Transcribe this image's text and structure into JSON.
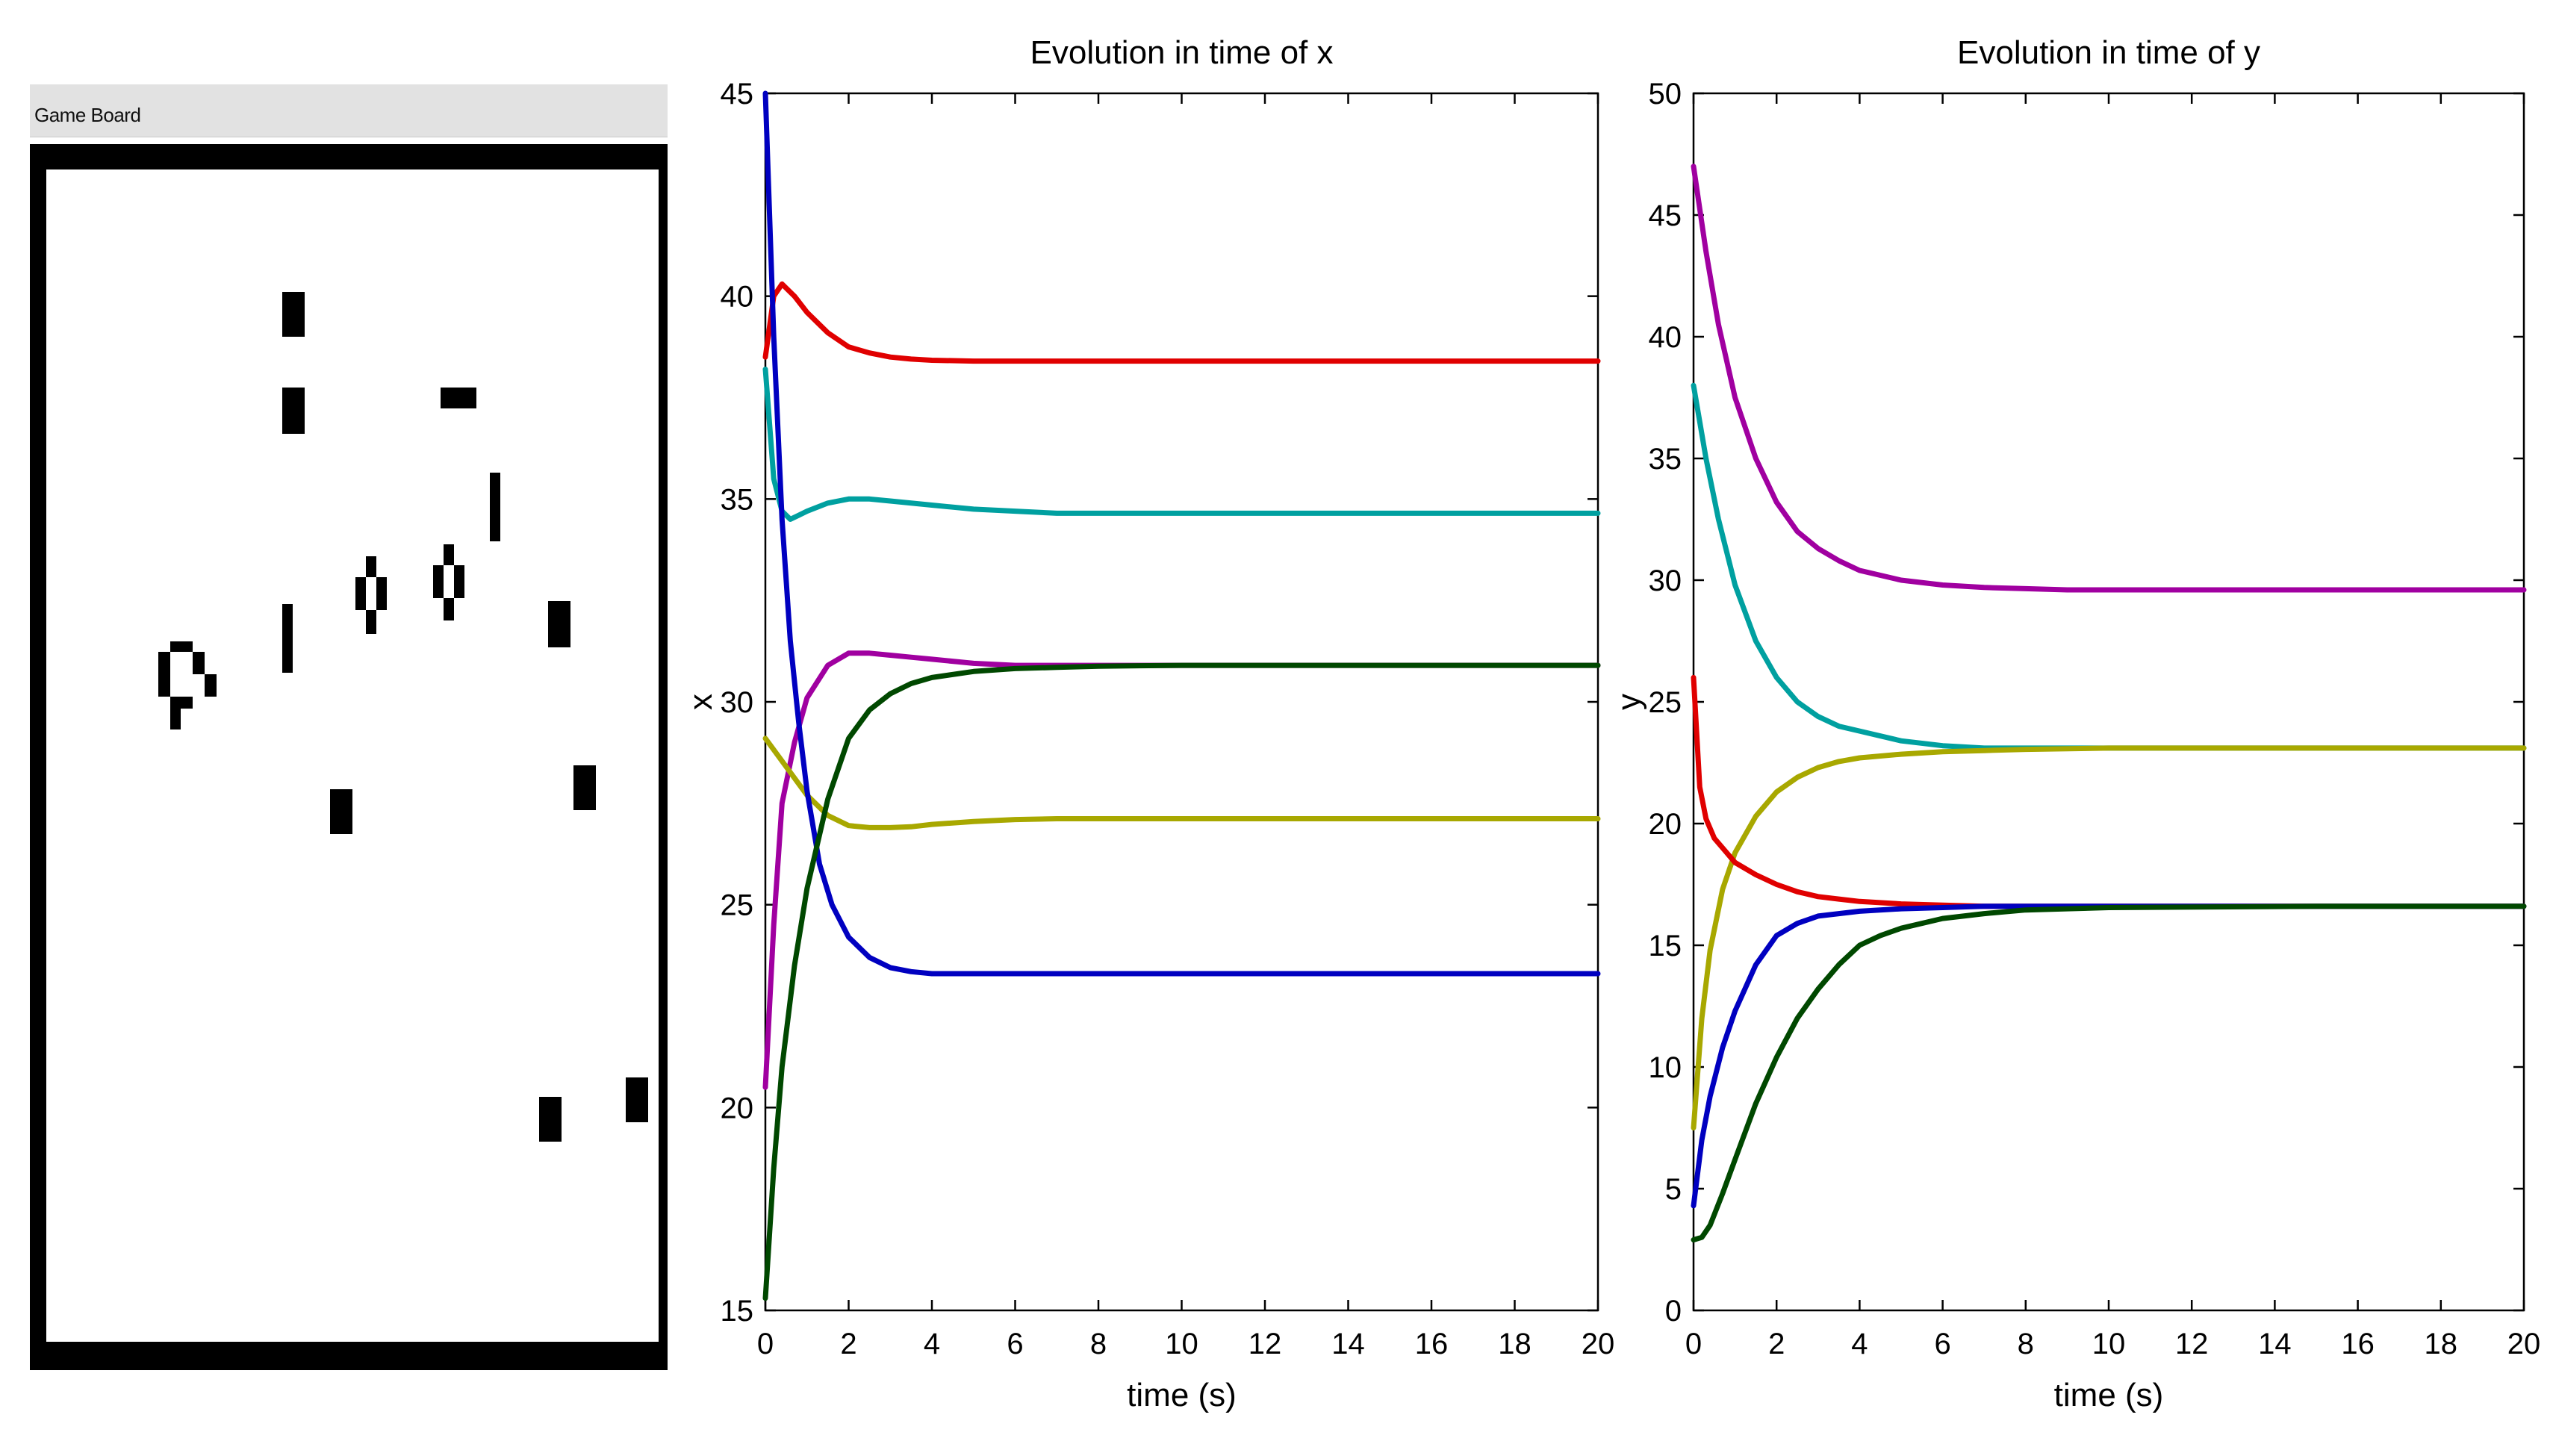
{
  "game_board": {
    "title": "Game Board"
  },
  "chart_data": [
    {
      "type": "line",
      "title": "Evolution in time of x",
      "xlabel": "time (s)",
      "ylabel": "x",
      "xlim": [
        0,
        20
      ],
      "ylim": [
        15,
        45
      ],
      "xticks": [
        0,
        2,
        4,
        6,
        8,
        10,
        12,
        14,
        16,
        18,
        20
      ],
      "yticks": [
        15,
        20,
        25,
        30,
        35,
        40,
        45
      ],
      "grid": false,
      "series": [
        {
          "name": "red",
          "color": "#e00000",
          "x": [
            0,
            0.2,
            0.4,
            0.7,
            1.0,
            1.5,
            2,
            2.5,
            3,
            3.5,
            4,
            5,
            6,
            8,
            10,
            15,
            20
          ],
          "y": [
            38.5,
            40.0,
            40.3,
            40.0,
            39.6,
            39.1,
            38.75,
            38.6,
            38.5,
            38.45,
            38.42,
            38.4,
            38.4,
            38.4,
            38.4,
            38.4,
            38.4
          ]
        },
        {
          "name": "cyan",
          "color": "#00a0a0",
          "x": [
            0,
            0.2,
            0.4,
            0.6,
            0.8,
            1.0,
            1.5,
            2,
            2.5,
            3,
            4,
            5,
            6,
            7,
            8,
            10,
            15,
            20
          ],
          "y": [
            38.2,
            35.5,
            34.7,
            34.5,
            34.6,
            34.7,
            34.9,
            35.0,
            35.0,
            34.95,
            34.85,
            34.75,
            34.7,
            34.65,
            34.65,
            34.65,
            34.65,
            34.65
          ]
        },
        {
          "name": "magenta",
          "color": "#a000a0",
          "x": [
            0,
            0.2,
            0.4,
            0.7,
            1.0,
            1.5,
            2,
            2.5,
            3,
            3.5,
            4,
            5,
            6,
            8,
            10,
            15,
            20
          ],
          "y": [
            20.5,
            24.5,
            27.5,
            29.0,
            30.1,
            30.9,
            31.2,
            31.2,
            31.15,
            31.1,
            31.05,
            30.95,
            30.9,
            30.9,
            30.9,
            30.9,
            30.9
          ]
        },
        {
          "name": "olive",
          "color": "#a8a800",
          "x": [
            0,
            0.5,
            1.0,
            1.5,
            2,
            2.5,
            3,
            3.5,
            4,
            5,
            6,
            7,
            8,
            10,
            15,
            20
          ],
          "y": [
            29.1,
            28.4,
            27.7,
            27.2,
            26.95,
            26.9,
            26.9,
            26.92,
            26.98,
            27.05,
            27.1,
            27.12,
            27.12,
            27.12,
            27.12,
            27.12
          ]
        },
        {
          "name": "blue",
          "color": "#0000c0",
          "x": [
            0,
            0.2,
            0.4,
            0.6,
            0.8,
            1.0,
            1.3,
            1.6,
            2.0,
            2.5,
            3,
            3.5,
            4,
            5,
            6,
            8,
            10,
            15,
            20
          ],
          "y": [
            45.0,
            39.0,
            34.5,
            31.5,
            29.5,
            27.8,
            26.0,
            25.0,
            24.2,
            23.7,
            23.45,
            23.35,
            23.3,
            23.3,
            23.3,
            23.3,
            23.3,
            23.3,
            23.3
          ]
        },
        {
          "name": "dark-green",
          "color": "#004800",
          "x": [
            0,
            0.2,
            0.4,
            0.7,
            1.0,
            1.5,
            2,
            2.5,
            3,
            3.5,
            4,
            5,
            6,
            7,
            8,
            10,
            15,
            20
          ],
          "y": [
            15.3,
            18.5,
            21.0,
            23.5,
            25.4,
            27.6,
            29.1,
            29.8,
            30.2,
            30.45,
            30.6,
            30.75,
            30.82,
            30.85,
            30.88,
            30.9,
            30.9,
            30.9
          ]
        }
      ]
    },
    {
      "type": "line",
      "title": "Evolution in time of y",
      "xlabel": "time (s)",
      "ylabel": "y",
      "xlim": [
        0,
        20
      ],
      "ylim": [
        0,
        50
      ],
      "xticks": [
        0,
        2,
        4,
        6,
        8,
        10,
        12,
        14,
        16,
        18,
        20
      ],
      "yticks": [
        0,
        5,
        10,
        15,
        20,
        25,
        30,
        35,
        40,
        45,
        50
      ],
      "grid": false,
      "series": [
        {
          "name": "magenta",
          "color": "#a000a0",
          "x": [
            0,
            0.3,
            0.6,
            1.0,
            1.5,
            2,
            2.5,
            3,
            3.5,
            4,
            5,
            6,
            7,
            8,
            9,
            10,
            15,
            20
          ],
          "y": [
            47.0,
            43.5,
            40.5,
            37.5,
            35.0,
            33.2,
            32.0,
            31.3,
            30.8,
            30.4,
            30.0,
            29.8,
            29.7,
            29.65,
            29.6,
            29.6,
            29.6,
            29.6
          ]
        },
        {
          "name": "cyan",
          "color": "#00a0a0",
          "x": [
            0,
            0.3,
            0.6,
            1.0,
            1.5,
            2,
            2.5,
            3,
            3.5,
            4,
            5,
            6,
            7,
            8,
            9,
            10,
            15,
            20
          ],
          "y": [
            38.0,
            35.0,
            32.5,
            29.8,
            27.5,
            26.0,
            25.0,
            24.4,
            24.0,
            23.8,
            23.4,
            23.2,
            23.1,
            23.1,
            23.1,
            23.1,
            23.1,
            23.1
          ]
        },
        {
          "name": "olive",
          "color": "#a8a800",
          "x": [
            0,
            0.2,
            0.4,
            0.7,
            1.0,
            1.5,
            2,
            2.5,
            3,
            3.5,
            4,
            5,
            6,
            7,
            8,
            10,
            15,
            20
          ],
          "y": [
            7.5,
            12.0,
            14.8,
            17.3,
            18.8,
            20.3,
            21.3,
            21.9,
            22.3,
            22.55,
            22.7,
            22.85,
            22.95,
            23.0,
            23.05,
            23.1,
            23.1,
            23.1
          ]
        },
        {
          "name": "red",
          "color": "#e00000",
          "x": [
            0,
            0.15,
            0.3,
            0.5,
            0.8,
            1.0,
            1.5,
            2,
            2.5,
            3,
            3.5,
            4,
            5,
            6,
            7,
            8,
            10,
            15,
            20
          ],
          "y": [
            26.0,
            21.5,
            20.2,
            19.4,
            18.8,
            18.4,
            17.9,
            17.5,
            17.2,
            17.0,
            16.9,
            16.8,
            16.7,
            16.65,
            16.6,
            16.6,
            16.6,
            16.6,
            16.6
          ]
        },
        {
          "name": "blue",
          "color": "#0000c0",
          "x": [
            0,
            0.2,
            0.4,
            0.7,
            1.0,
            1.5,
            2,
            2.5,
            3,
            3.5,
            4,
            5,
            6,
            7,
            8,
            10,
            15,
            20
          ],
          "y": [
            4.3,
            7.0,
            8.8,
            10.8,
            12.3,
            14.2,
            15.4,
            15.9,
            16.2,
            16.3,
            16.4,
            16.5,
            16.55,
            16.6,
            16.6,
            16.6,
            16.6,
            16.6
          ]
        },
        {
          "name": "dark-green",
          "color": "#004800",
          "x": [
            0,
            0.2,
            0.4,
            0.7,
            1.0,
            1.5,
            2,
            2.5,
            3,
            3.5,
            4,
            4.5,
            5,
            6,
            7,
            8,
            9,
            10,
            15,
            20
          ],
          "y": [
            2.9,
            3.0,
            3.5,
            4.8,
            6.2,
            8.5,
            10.4,
            12.0,
            13.2,
            14.2,
            15.0,
            15.4,
            15.7,
            16.1,
            16.3,
            16.45,
            16.5,
            16.55,
            16.6,
            16.6
          ]
        }
      ]
    }
  ]
}
